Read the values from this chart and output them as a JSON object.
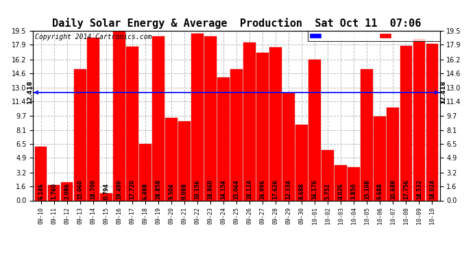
{
  "title": "Daily Solar Energy & Average  Production  Sat Oct 11  07:06",
  "copyright": "Copyright 2014 Cartronics.com",
  "average_value": 12.418,
  "categories": [
    "09-10",
    "09-11",
    "09-12",
    "09-13",
    "09-14",
    "09-15",
    "09-16",
    "09-17",
    "09-18",
    "09-19",
    "09-20",
    "09-21",
    "09-22",
    "09-23",
    "09-24",
    "09-25",
    "09-26",
    "09-27",
    "09-28",
    "09-29",
    "09-30",
    "10-01",
    "10-02",
    "10-03",
    "10-04",
    "10-05",
    "10-06",
    "10-07",
    "10-08",
    "10-09",
    "10-10"
  ],
  "values": [
    6.146,
    1.76,
    2.086,
    15.06,
    18.7,
    0.794,
    19.49,
    17.72,
    6.498,
    18.858,
    9.504,
    9.098,
    19.156,
    18.86,
    14.154,
    15.064,
    18.124,
    16.996,
    17.626,
    12.334,
    8.688,
    16.176,
    5.752,
    4.026,
    3.85,
    15.108,
    9.688,
    10.688,
    17.756,
    18.532,
    18.024
  ],
  "bar_color": "#ff0000",
  "bar_edge_color": "#cc0000",
  "average_line_color": "#0000ff",
  "background_color": "#ffffff",
  "grid_color": "#bbbbbb",
  "ylim": [
    0,
    19.5
  ],
  "yticks": [
    0.0,
    1.6,
    3.2,
    4.9,
    6.5,
    8.1,
    9.7,
    11.4,
    13.0,
    14.6,
    16.2,
    17.9,
    19.5
  ],
  "title_fontsize": 11,
  "copyright_fontsize": 7,
  "label_fontsize": 5.5,
  "tick_fontsize": 6,
  "ytick_fontsize": 7
}
